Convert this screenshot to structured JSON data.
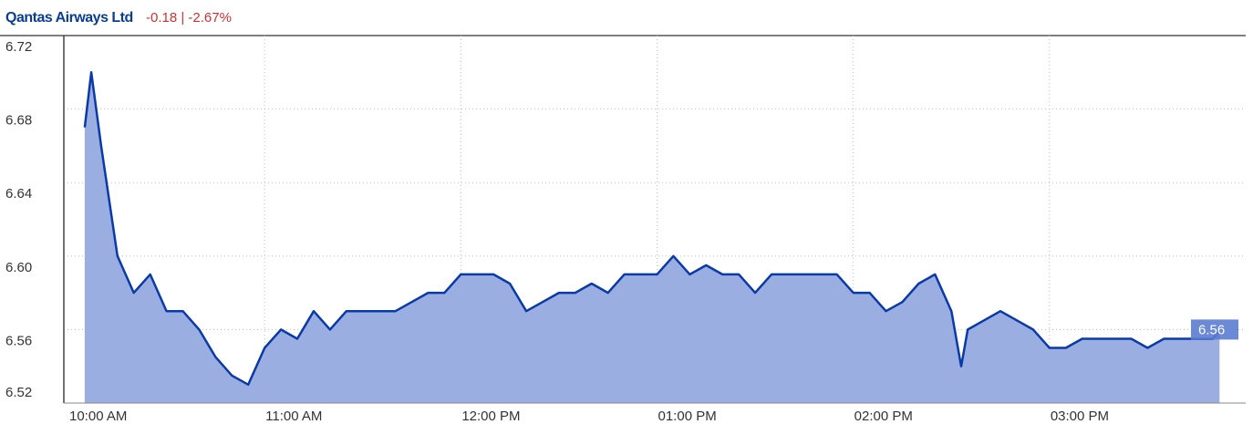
{
  "chart_data": {
    "type": "area",
    "title": "Qantas Airways Ltd",
    "subtitle": "-0.18 | -2.67%",
    "x": [
      "10:05",
      "10:07",
      "10:10",
      "10:15",
      "10:20",
      "10:25",
      "10:30",
      "10:35",
      "10:40",
      "10:45",
      "10:50",
      "10:55",
      "11:00",
      "11:05",
      "11:10",
      "11:15",
      "11:20",
      "11:25",
      "11:30",
      "11:35",
      "11:40",
      "11:45",
      "11:50",
      "11:55",
      "12:00",
      "12:05",
      "12:10",
      "12:15",
      "12:20",
      "12:25",
      "12:30",
      "12:35",
      "12:40",
      "12:45",
      "12:50",
      "12:55",
      "13:00",
      "13:05",
      "13:10",
      "13:15",
      "13:20",
      "13:25",
      "13:30",
      "13:35",
      "13:40",
      "13:45",
      "13:50",
      "13:55",
      "14:00",
      "14:05",
      "14:10",
      "14:15",
      "14:20",
      "14:25",
      "14:30",
      "14:33",
      "14:35",
      "14:40",
      "14:45",
      "14:50",
      "14:55",
      "15:00",
      "15:05",
      "15:10",
      "15:15",
      "15:20",
      "15:25",
      "15:30",
      "15:35",
      "15:40",
      "15:45",
      "15:50",
      "15:52"
    ],
    "values": [
      6.67,
      6.7,
      6.66,
      6.6,
      6.58,
      6.59,
      6.57,
      6.57,
      6.56,
      6.545,
      6.535,
      6.53,
      6.55,
      6.56,
      6.555,
      6.57,
      6.56,
      6.57,
      6.57,
      6.57,
      6.57,
      6.575,
      6.58,
      6.58,
      6.59,
      6.59,
      6.59,
      6.585,
      6.57,
      6.575,
      6.58,
      6.58,
      6.585,
      6.58,
      6.59,
      6.59,
      6.59,
      6.6,
      6.59,
      6.595,
      6.59,
      6.59,
      6.58,
      6.59,
      6.59,
      6.59,
      6.59,
      6.59,
      6.58,
      6.58,
      6.57,
      6.575,
      6.585,
      6.59,
      6.57,
      6.54,
      6.56,
      6.565,
      6.57,
      6.565,
      6.56,
      6.55,
      6.55,
      6.555,
      6.555,
      6.555,
      6.555,
      6.55,
      6.555,
      6.555,
      6.555,
      6.555,
      6.56
    ],
    "color": "#0a3aa8",
    "fill": "#9aaee2",
    "last_value": 6.56,
    "xlim": [
      "10:00",
      "16:00"
    ],
    "xticks": [
      {
        "value": "10:00",
        "label": "10:00 AM"
      },
      {
        "value": "11:00",
        "label": "11:00 AM"
      },
      {
        "value": "12:00",
        "label": "12:00 PM"
      },
      {
        "value": "13:00",
        "label": "01:00 PM"
      },
      {
        "value": "14:00",
        "label": "02:00 PM"
      },
      {
        "value": "15:00",
        "label": "03:00 PM"
      }
    ],
    "ylim": [
      6.52,
      6.72
    ],
    "yticks": [
      6.52,
      6.56,
      {
        "value": 6.6,
        "label": "6.60"
      },
      6.64,
      6.68,
      6.72
    ],
    "grid": true
  }
}
